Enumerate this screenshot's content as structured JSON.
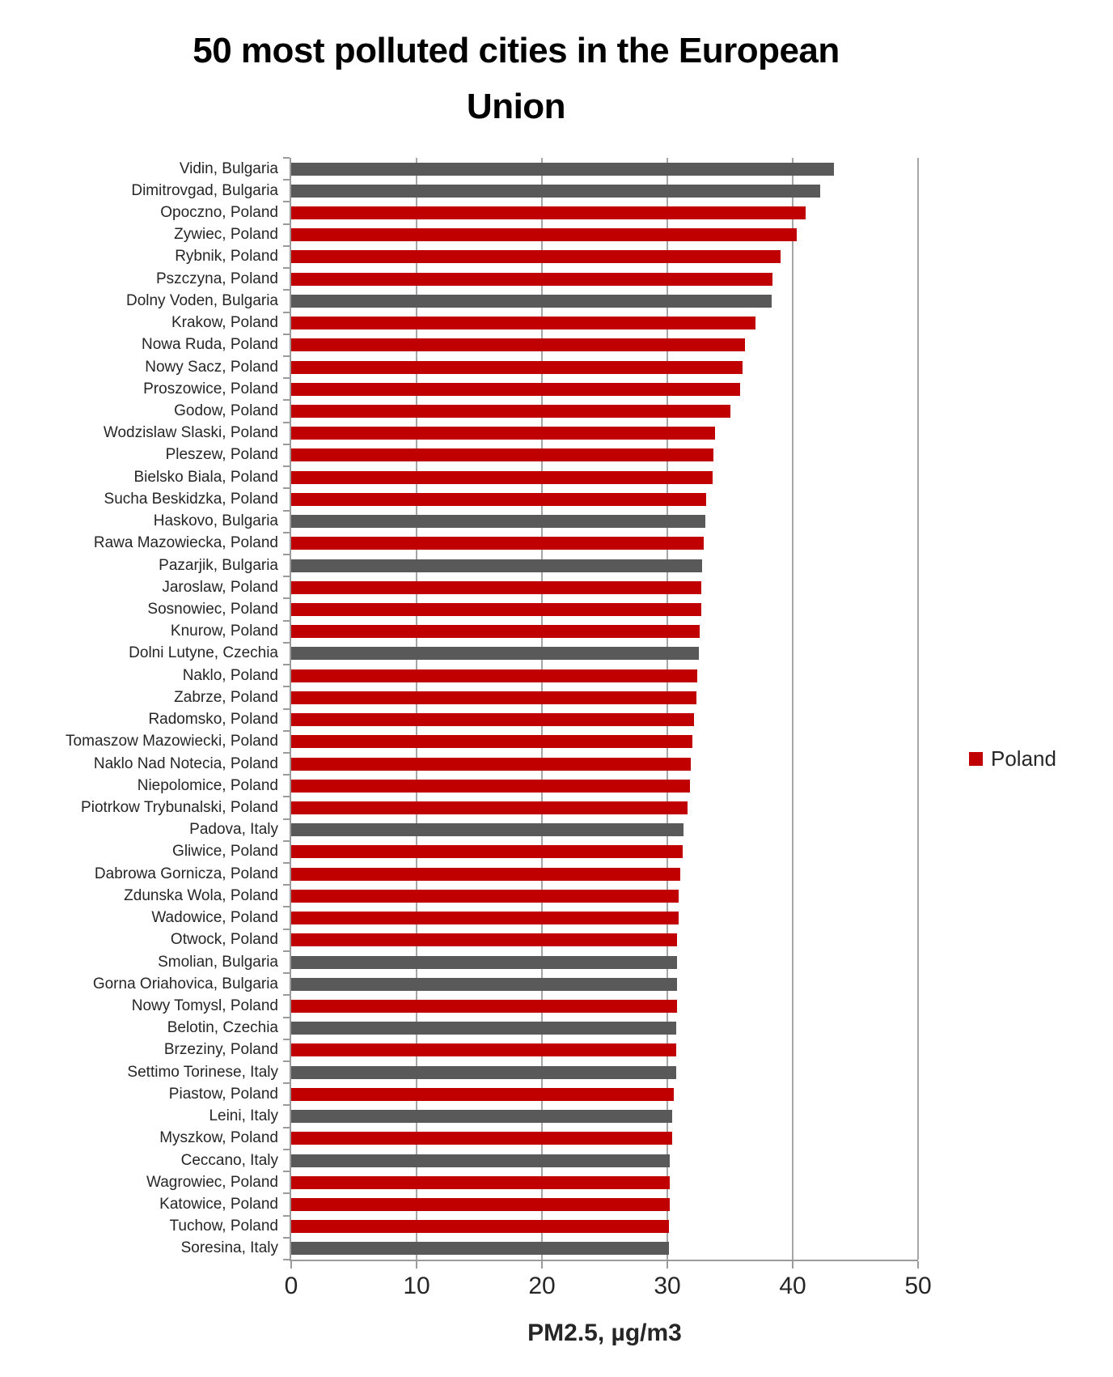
{
  "title_lines": [
    "50 most polluted cities in the European",
    "Union"
  ],
  "chart_data": {
    "type": "bar",
    "orientation": "horizontal",
    "title": "50 most polluted cities in the European Union",
    "xlabel": "PM2.5, µg/m3",
    "ylabel": "",
    "xlim": [
      0,
      50
    ],
    "xticks": [
      0,
      10,
      20,
      30,
      40,
      50
    ],
    "grid": true,
    "legend_position": "right",
    "legend": [
      {
        "label": "Poland",
        "color": "#C00000"
      }
    ],
    "series_colors": {
      "Poland": "#C00000",
      "Other": "#595959"
    },
    "bars": [
      {
        "label": "Vidin, Bulgaria",
        "value": 43.3,
        "group": "Other"
      },
      {
        "label": "Dimitrovgad, Bulgaria",
        "value": 42.2,
        "group": "Other"
      },
      {
        "label": "Opoczno, Poland",
        "value": 41.0,
        "group": "Poland"
      },
      {
        "label": "Zywiec, Poland",
        "value": 40.3,
        "group": "Poland"
      },
      {
        "label": "Rybnik, Poland",
        "value": 39.0,
        "group": "Poland"
      },
      {
        "label": "Pszczyna, Poland",
        "value": 38.4,
        "group": "Poland"
      },
      {
        "label": "Dolny Voden, Bulgaria",
        "value": 38.3,
        "group": "Other"
      },
      {
        "label": "Krakow, Poland",
        "value": 37.0,
        "group": "Poland"
      },
      {
        "label": "Nowa Ruda, Poland",
        "value": 36.2,
        "group": "Poland"
      },
      {
        "label": "Nowy Sacz, Poland",
        "value": 36.0,
        "group": "Poland"
      },
      {
        "label": "Proszowice, Poland",
        "value": 35.8,
        "group": "Poland"
      },
      {
        "label": "Godow, Poland",
        "value": 35.0,
        "group": "Poland"
      },
      {
        "label": "Wodzislaw Slaski, Poland",
        "value": 33.8,
        "group": "Poland"
      },
      {
        "label": "Pleszew, Poland",
        "value": 33.7,
        "group": "Poland"
      },
      {
        "label": "Bielsko Biala, Poland",
        "value": 33.6,
        "group": "Poland"
      },
      {
        "label": "Sucha Beskidzka, Poland",
        "value": 33.1,
        "group": "Poland"
      },
      {
        "label": "Haskovo, Bulgaria",
        "value": 33.0,
        "group": "Other"
      },
      {
        "label": "Rawa Mazowiecka, Poland",
        "value": 32.9,
        "group": "Poland"
      },
      {
        "label": "Pazarjik, Bulgaria",
        "value": 32.8,
        "group": "Other"
      },
      {
        "label": "Jaroslaw, Poland",
        "value": 32.7,
        "group": "Poland"
      },
      {
        "label": "Sosnowiec, Poland",
        "value": 32.7,
        "group": "Poland"
      },
      {
        "label": "Knurow, Poland",
        "value": 32.6,
        "group": "Poland"
      },
      {
        "label": "Dolni Lutyne, Czechia",
        "value": 32.5,
        "group": "Other"
      },
      {
        "label": "Naklo, Poland",
        "value": 32.4,
        "group": "Poland"
      },
      {
        "label": "Zabrze, Poland",
        "value": 32.3,
        "group": "Poland"
      },
      {
        "label": "Radomsko, Poland",
        "value": 32.1,
        "group": "Poland"
      },
      {
        "label": "Tomaszow Mazowiecki, Poland",
        "value": 32.0,
        "group": "Poland"
      },
      {
        "label": "Naklo Nad Notecia, Poland",
        "value": 31.9,
        "group": "Poland"
      },
      {
        "label": "Niepolomice, Poland",
        "value": 31.8,
        "group": "Poland"
      },
      {
        "label": "Piotrkow Trybunalski, Poland",
        "value": 31.6,
        "group": "Poland"
      },
      {
        "label": "Padova, Italy",
        "value": 31.3,
        "group": "Other"
      },
      {
        "label": "Gliwice, Poland",
        "value": 31.2,
        "group": "Poland"
      },
      {
        "label": "Dabrowa Gornicza, Poland",
        "value": 31.0,
        "group": "Poland"
      },
      {
        "label": "Zdunska Wola, Poland",
        "value": 30.9,
        "group": "Poland"
      },
      {
        "label": "Wadowice, Poland",
        "value": 30.9,
        "group": "Poland"
      },
      {
        "label": "Otwock, Poland",
        "value": 30.8,
        "group": "Poland"
      },
      {
        "label": "Smolian, Bulgaria",
        "value": 30.8,
        "group": "Other"
      },
      {
        "label": "Gorna Oriahovica, Bulgaria",
        "value": 30.8,
        "group": "Other"
      },
      {
        "label": "Nowy Tomysl, Poland",
        "value": 30.8,
        "group": "Poland"
      },
      {
        "label": "Belotin, Czechia",
        "value": 30.7,
        "group": "Other"
      },
      {
        "label": "Brzeziny, Poland",
        "value": 30.7,
        "group": "Poland"
      },
      {
        "label": "Settimo Torinese, Italy",
        "value": 30.7,
        "group": "Other"
      },
      {
        "label": "Piastow, Poland",
        "value": 30.5,
        "group": "Poland"
      },
      {
        "label": "Leini, Italy",
        "value": 30.4,
        "group": "Other"
      },
      {
        "label": "Myszkow, Poland",
        "value": 30.4,
        "group": "Poland"
      },
      {
        "label": "Ceccano, Italy",
        "value": 30.2,
        "group": "Other"
      },
      {
        "label": "Wagrowiec, Poland",
        "value": 30.2,
        "group": "Poland"
      },
      {
        "label": "Katowice, Poland",
        "value": 30.2,
        "group": "Poland"
      },
      {
        "label": "Tuchow, Poland",
        "value": 30.1,
        "group": "Poland"
      },
      {
        "label": "Soresina, Italy",
        "value": 30.1,
        "group": "Other"
      }
    ],
    "colors": {
      "gridline": "#A6A6A6",
      "axis": "#9B9B9B",
      "text": "#262626",
      "title": "#000000"
    }
  }
}
